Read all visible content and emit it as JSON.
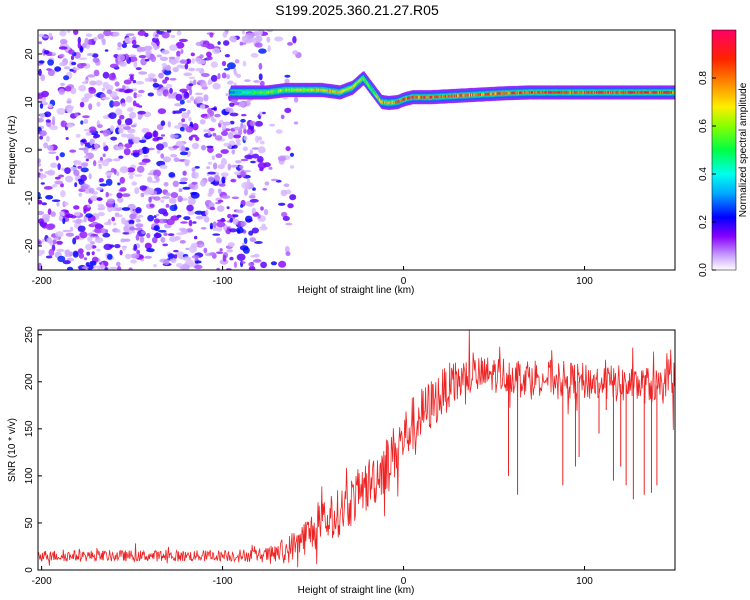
{
  "title": "S199.2025.360.21.27.R05",
  "colors": {
    "snr_line": "#ee2222",
    "axis": "#000000",
    "background": "#ffffff"
  },
  "chart_data": [
    {
      "type": "heatmap",
      "xlabel": "Height of straight line (km)",
      "ylabel": "Frequency (Hz)",
      "xlim": [
        -202,
        150
      ],
      "ylim": [
        -25,
        25
      ],
      "xticks": [
        -200,
        -100,
        0,
        100
      ],
      "yticks": [
        -20,
        -10,
        0,
        10,
        20
      ],
      "colorbar": {
        "label": "Normalized spectral amplitude",
        "range": [
          0,
          1
        ],
        "ticks": [
          0.0,
          0.2,
          0.4,
          0.6,
          0.8
        ]
      },
      "noise_region_x": [
        -202,
        -78
      ],
      "signal_track": {
        "x": [
          -95,
          -85,
          -75,
          -65,
          -55,
          -45,
          -35,
          -28,
          -22,
          -18,
          -15,
          -12,
          -8,
          -3,
          0,
          5,
          15,
          25,
          40,
          55,
          70,
          85,
          100,
          115,
          130,
          150
        ],
        "freq": [
          12,
          12,
          12,
          12.5,
          12.5,
          12.5,
          12,
          13,
          15,
          13,
          11.5,
          10,
          9.8,
          10,
          10.5,
          11,
          11,
          11.2,
          11.5,
          11.8,
          12,
          12,
          12,
          12,
          12,
          12
        ],
        "amplitude": [
          0.3,
          0.5,
          0.6,
          0.65,
          0.7,
          0.75,
          0.8,
          0.7,
          0.6,
          0.55,
          0.7,
          0.8,
          0.8,
          0.85,
          0.9,
          0.9,
          0.9,
          0.9,
          0.85,
          0.85,
          0.95,
          0.95,
          0.9,
          0.9,
          0.95,
          0.9
        ]
      }
    },
    {
      "type": "line",
      "xlabel": "Height of straight line (km)",
      "ylabel": "SNR (10 * v/v)",
      "xlim": [
        -202,
        150
      ],
      "ylim": [
        0,
        255
      ],
      "xticks": [
        -200,
        -100,
        0,
        100
      ],
      "yticks": [
        0,
        50,
        100,
        150,
        200,
        250
      ],
      "envelope": {
        "x": [
          -202,
          -150,
          -100,
          -75,
          -65,
          -55,
          -45,
          -35,
          -25,
          -15,
          -5,
          5,
          15,
          25,
          35,
          50,
          75,
          100,
          125,
          150
        ],
        "mean": [
          15,
          15,
          15,
          16,
          20,
          35,
          48,
          62,
          80,
          100,
          125,
          155,
          175,
          195,
          205,
          208,
          205,
          200,
          197,
          195
        ],
        "spread": [
          6,
          6,
          6,
          8,
          14,
          20,
          24,
          26,
          28,
          30,
          30,
          30,
          28,
          25,
          22,
          20,
          20,
          20,
          20,
          20
        ]
      },
      "dropouts": [
        {
          "x": 58,
          "y": 100
        },
        {
          "x": 63,
          "y": 80
        },
        {
          "x": 88,
          "y": 90
        },
        {
          "x": 95,
          "y": 110
        },
        {
          "x": 97,
          "y": 120
        },
        {
          "x": 108,
          "y": 145
        },
        {
          "x": 112,
          "y": 170
        },
        {
          "x": 116,
          "y": 95
        },
        {
          "x": 120,
          "y": 110
        },
        {
          "x": 123,
          "y": 90
        },
        {
          "x": 127,
          "y": 75
        },
        {
          "x": 133,
          "y": 80
        },
        {
          "x": 137,
          "y": 82
        },
        {
          "x": 140,
          "y": 90
        }
      ]
    }
  ]
}
